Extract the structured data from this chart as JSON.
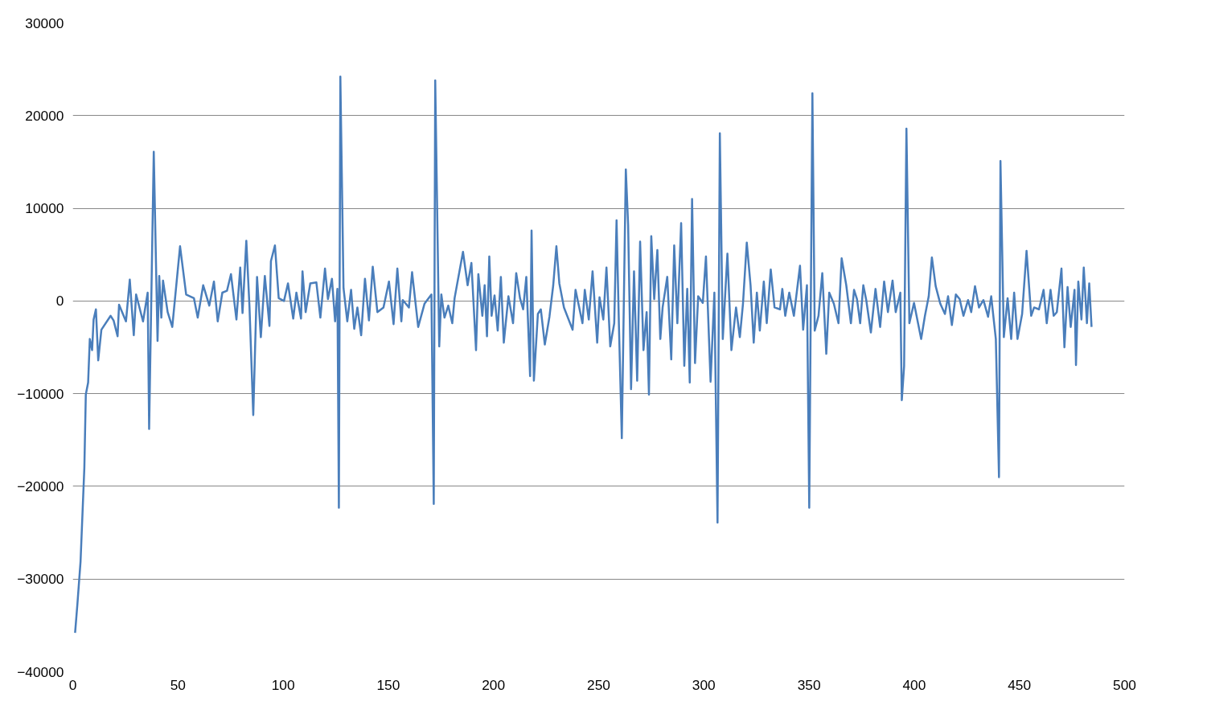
{
  "chart_data": {
    "type": "line",
    "x": [
      1.1,
      2.2,
      3.7,
      5.5,
      6.2,
      7.3,
      8.1,
      9.2,
      9.9,
      11.0,
      12.1,
      13.6,
      18.0,
      19.4,
      21.3,
      22.0,
      25.3,
      27.1,
      29.0,
      30.1,
      33.4,
      35.6,
      36.3,
      38.5,
      40.3,
      41.1,
      42.1,
      42.9,
      45.1,
      47.3,
      51.0,
      53.9,
      57.6,
      59.4,
      62.0,
      64.9,
      67.1,
      68.9,
      71.1,
      73.3,
      75.2,
      77.8,
      79.6,
      80.7,
      82.5,
      84.0,
      85.8,
      87.6,
      89.4,
      91.3,
      93.5,
      94.2,
      96.1,
      97.9,
      100.4,
      102.3,
      104.8,
      106.3,
      108.5,
      109.2,
      110.7,
      112.9,
      115.8,
      117.7,
      119.9,
      121.3,
      123.2,
      124.7,
      125.8,
      126.5,
      127.2,
      128.7,
      130.5,
      132.3,
      133.8,
      135.3,
      137.1,
      138.9,
      140.8,
      142.6,
      144.8,
      147.7,
      150.3,
      152.5,
      154.3,
      156.2,
      156.9,
      159.8,
      161.3,
      164.2,
      167.2,
      170.5,
      171.6,
      172.3,
      174.2,
      175.2,
      176.7,
      178.5,
      180.4,
      181.5,
      185.5,
      187.7,
      189.5,
      191.7,
      192.8,
      194.7,
      195.8,
      196.9,
      198.0,
      199.1,
      200.5,
      202.0,
      203.5,
      204.9,
      207.1,
      209.3,
      210.8,
      212.6,
      214.1,
      215.6,
      217.4,
      218.1,
      219.2,
      221.1,
      222.5,
      224.4,
      226.6,
      228.4,
      229.9,
      231.3,
      233.5,
      237.6,
      239.0,
      242.3,
      243.4,
      245.3,
      247.1,
      249.3,
      250.4,
      252.2,
      253.7,
      255.5,
      257.4,
      258.5,
      259.6,
      261.0,
      262.9,
      264.0,
      265.4,
      266.8,
      268.3,
      269.7,
      271.3,
      272.8,
      273.9,
      275.0,
      276.4,
      277.9,
      279.3,
      280.4,
      282.6,
      284.5,
      285.9,
      287.4,
      289.2,
      290.7,
      292.1,
      293.3,
      294.4,
      295.8,
      297.3,
      299.5,
      301.0,
      303.2,
      305.0,
      306.5,
      307.6,
      309.0,
      311.2,
      313.1,
      315.3,
      317.1,
      318.6,
      320.4,
      322.2,
      323.7,
      325.2,
      326.6,
      328.5,
      329.9,
      331.8,
      333.6,
      336.2,
      337.3,
      338.7,
      340.6,
      342.8,
      345.7,
      347.2,
      349.0,
      350.1,
      351.6,
      352.7,
      354.5,
      356.3,
      358.2,
      359.6,
      361.8,
      364.0,
      365.5,
      367.7,
      369.9,
      371.4,
      372.8,
      374.3,
      375.8,
      377.2,
      379.4,
      381.6,
      383.8,
      385.7,
      387.5,
      389.7,
      391.2,
      393.4,
      394.1,
      395.2,
      396.3,
      397.7,
      399.9,
      403.3,
      405.1,
      406.9,
      408.4,
      410.2,
      412.4,
      414.6,
      416.1,
      417.9,
      419.8,
      421.6,
      423.4,
      425.6,
      427.1,
      428.9,
      430.8,
      432.9,
      435.1,
      436.6,
      438.8,
      440.3,
      441.0,
      442.6,
      444.4,
      446.1,
      447.5,
      449.1,
      451.3,
      453.4,
      455.6,
      457.0,
      459.3,
      461.5,
      463.0,
      464.8,
      466.3,
      467.8,
      470.0,
      471.4,
      472.9,
      474.4,
      476.2,
      476.9,
      478.0,
      479.5,
      480.6,
      482.1,
      483.2,
      484.3
    ],
    "series": [
      {
        "color": "#4a7ebb",
        "values": [
          -35800,
          -32700,
          -28100,
          -18000,
          -10100,
          -8800,
          -4100,
          -5300,
          -2000,
          -900,
          -6400,
          -3100,
          -1600,
          -2100,
          -3800,
          -400,
          -2200,
          2300,
          -3700,
          700,
          -2200,
          900,
          -13800,
          16100,
          -4300,
          2700,
          -1800,
          2200,
          -1200,
          -2800,
          5900,
          700,
          300,
          -1800,
          1700,
          -500,
          2100,
          -2200,
          900,
          1100,
          2900,
          -2000,
          3600,
          -1300,
          6500,
          -600,
          -12300,
          2600,
          -3900,
          2700,
          -2700,
          4300,
          6000,
          300,
          0,
          1900,
          -1900,
          900,
          -1900,
          3200,
          -1200,
          1900,
          2000,
          -1800,
          3500,
          200,
          2400,
          -2200,
          1300,
          -22300,
          24200,
          1400,
          -2200,
          1200,
          -3000,
          -700,
          -3700,
          2400,
          -2100,
          3700,
          -1200,
          -700,
          2100,
          -2500,
          3500,
          -2200,
          100,
          -700,
          3100,
          -2800,
          -300,
          700,
          -21900,
          23800,
          -4900,
          700,
          -1800,
          -500,
          -2400,
          300,
          5300,
          1700,
          4100,
          -5300,
          2900,
          -1600,
          1700,
          -3800,
          4800,
          -1600,
          600,
          -3200,
          2600,
          -4500,
          500,
          -2400,
          3000,
          300,
          -900,
          2600,
          -8100,
          7600,
          -8600,
          -1400,
          -900,
          -4700,
          -1700,
          1700,
          5900,
          1900,
          -700,
          -3100,
          1200,
          -2400,
          1200,
          -2000,
          3200,
          -4500,
          400,
          -2000,
          3600,
          -4900,
          -2400,
          8700,
          -2400,
          -14800,
          14200,
          8200,
          -9500,
          3200,
          -8600,
          6400,
          -5300,
          -1200,
          -10100,
          7000,
          200,
          5500,
          -4100,
          -700,
          2600,
          -6300,
          6000,
          -2400,
          8400,
          -7000,
          1300,
          -8800,
          11000,
          -6700,
          500,
          -200,
          4800,
          -8700,
          900,
          -23900,
          18100,
          -4100,
          5100,
          -5300,
          -700,
          -3900,
          -300,
          6300,
          1700,
          -4500,
          900,
          -3200,
          2100,
          -2400,
          3400,
          -700,
          -900,
          1300,
          -1600,
          900,
          -1600,
          3800,
          -3100,
          1700,
          -22300,
          22400,
          -3200,
          -1600,
          3000,
          -5700,
          900,
          -300,
          -2400,
          4600,
          1700,
          -2400,
          1200,
          200,
          -2400,
          1700,
          100,
          -3400,
          1300,
          -2800,
          2100,
          -1200,
          2200,
          -1200,
          900,
          -10700,
          -7000,
          18600,
          -2400,
          -200,
          -4100,
          -1600,
          500,
          4700,
          1600,
          -300,
          -1400,
          500,
          -2600,
          700,
          200,
          -1600,
          100,
          -1200,
          1600,
          -700,
          100,
          -1700,
          500,
          -4100,
          -19000,
          15100,
          -3900,
          300,
          -4100,
          900,
          -4100,
          -1400,
          5400,
          -1600,
          -700,
          -900,
          1200,
          -2400,
          1200,
          -1600,
          -1200,
          3500,
          -5000,
          1500,
          -2800,
          1200,
          -6900,
          2100,
          -2000,
          3600,
          -2400,
          1900,
          -2800
        ]
      }
    ],
    "xlim": [
      0,
      500
    ],
    "xticks": [
      0,
      50,
      100,
      150,
      200,
      250,
      300,
      350,
      400,
      450,
      500
    ],
    "ylim": [
      -40000,
      30000
    ],
    "yticks": [
      -40000,
      -30000,
      -20000,
      -10000,
      0,
      10000,
      20000,
      30000
    ],
    "grid": "y",
    "marker": "none",
    "line_style": "solid"
  }
}
